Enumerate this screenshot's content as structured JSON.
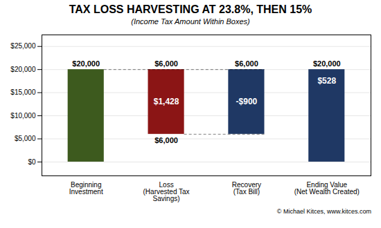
{
  "chart_data": {
    "type": "bar",
    "title": "TAX LOSS HARVESTING AT 23.8%, THEN 15%",
    "subtitle": "(Income Tax Amount Within Boxes)",
    "caption": "© Michael Kitces, www.kitces.com",
    "categories": [
      "Beginning\nInvestment",
      "Loss\n(Harvested Tax\nSavings)",
      "Recovery\n(Tax Bill)",
      "Ending Value\n(Net Wealth Created)"
    ],
    "values": [
      20000,
      20000,
      20000,
      20000
    ],
    "bottoms": [
      0,
      6000,
      6000,
      0
    ],
    "colors": [
      "#3d5a1e",
      "#8b1515",
      "#1f3864",
      "#1f3864"
    ],
    "annotations": [
      {
        "text": "$20,000",
        "category": "Beginning\nInvestment",
        "y": 20000,
        "anchor": "above"
      },
      {
        "text": "$6,000",
        "category": "Loss\n(Harvested Tax\nSavings)",
        "y": 20000,
        "anchor": "above"
      },
      {
        "text": "$6,000",
        "category": "Recovery\n(Tax Bill)",
        "y": 20000,
        "anchor": "above"
      },
      {
        "text": "$20,000",
        "category": "Ending Value\n(Net Wealth Created)",
        "y": 20000,
        "anchor": "above"
      },
      {
        "text": "$6,000",
        "category": "Loss\n(Harvested Tax\nSavings)",
        "y": 6000,
        "anchor": "below"
      },
      {
        "text": "$1,428",
        "category": "Loss\n(Harvested Tax\nSavings)",
        "y": 13000,
        "anchor": "center",
        "color": "#ffffff"
      },
      {
        "text": "-$900",
        "category": "Recovery\n(Tax Bill)",
        "y": 13000,
        "anchor": "center",
        "color": "#ffffff"
      },
      {
        "text": "$528",
        "category": "Ending Value\n(Net Wealth Created)",
        "y": 17500,
        "anchor": "center",
        "color": "#ffffff"
      }
    ],
    "reference_lines": [
      {
        "value": 20000,
        "from": "Beginning\nInvestment",
        "to": "Recovery\n(Tax Bill)",
        "line_style": "dashed"
      },
      {
        "value": 6000,
        "from": "Loss\n(Harvested Tax\nSavings)",
        "to": "Recovery\n(Tax Bill)",
        "line_style": "dashed"
      }
    ],
    "ylim": [
      -3000,
      27500
    ],
    "yticks": [
      {
        "value": 0,
        "label": "$0"
      },
      {
        "value": 5000,
        "label": "$5,000"
      },
      {
        "value": 10000,
        "label": "$10,000"
      },
      {
        "value": 15000,
        "label": "$15,000"
      },
      {
        "value": 20000,
        "label": "$20,000"
      },
      {
        "value": 25000,
        "label": "$25,000"
      }
    ],
    "grid": true
  }
}
